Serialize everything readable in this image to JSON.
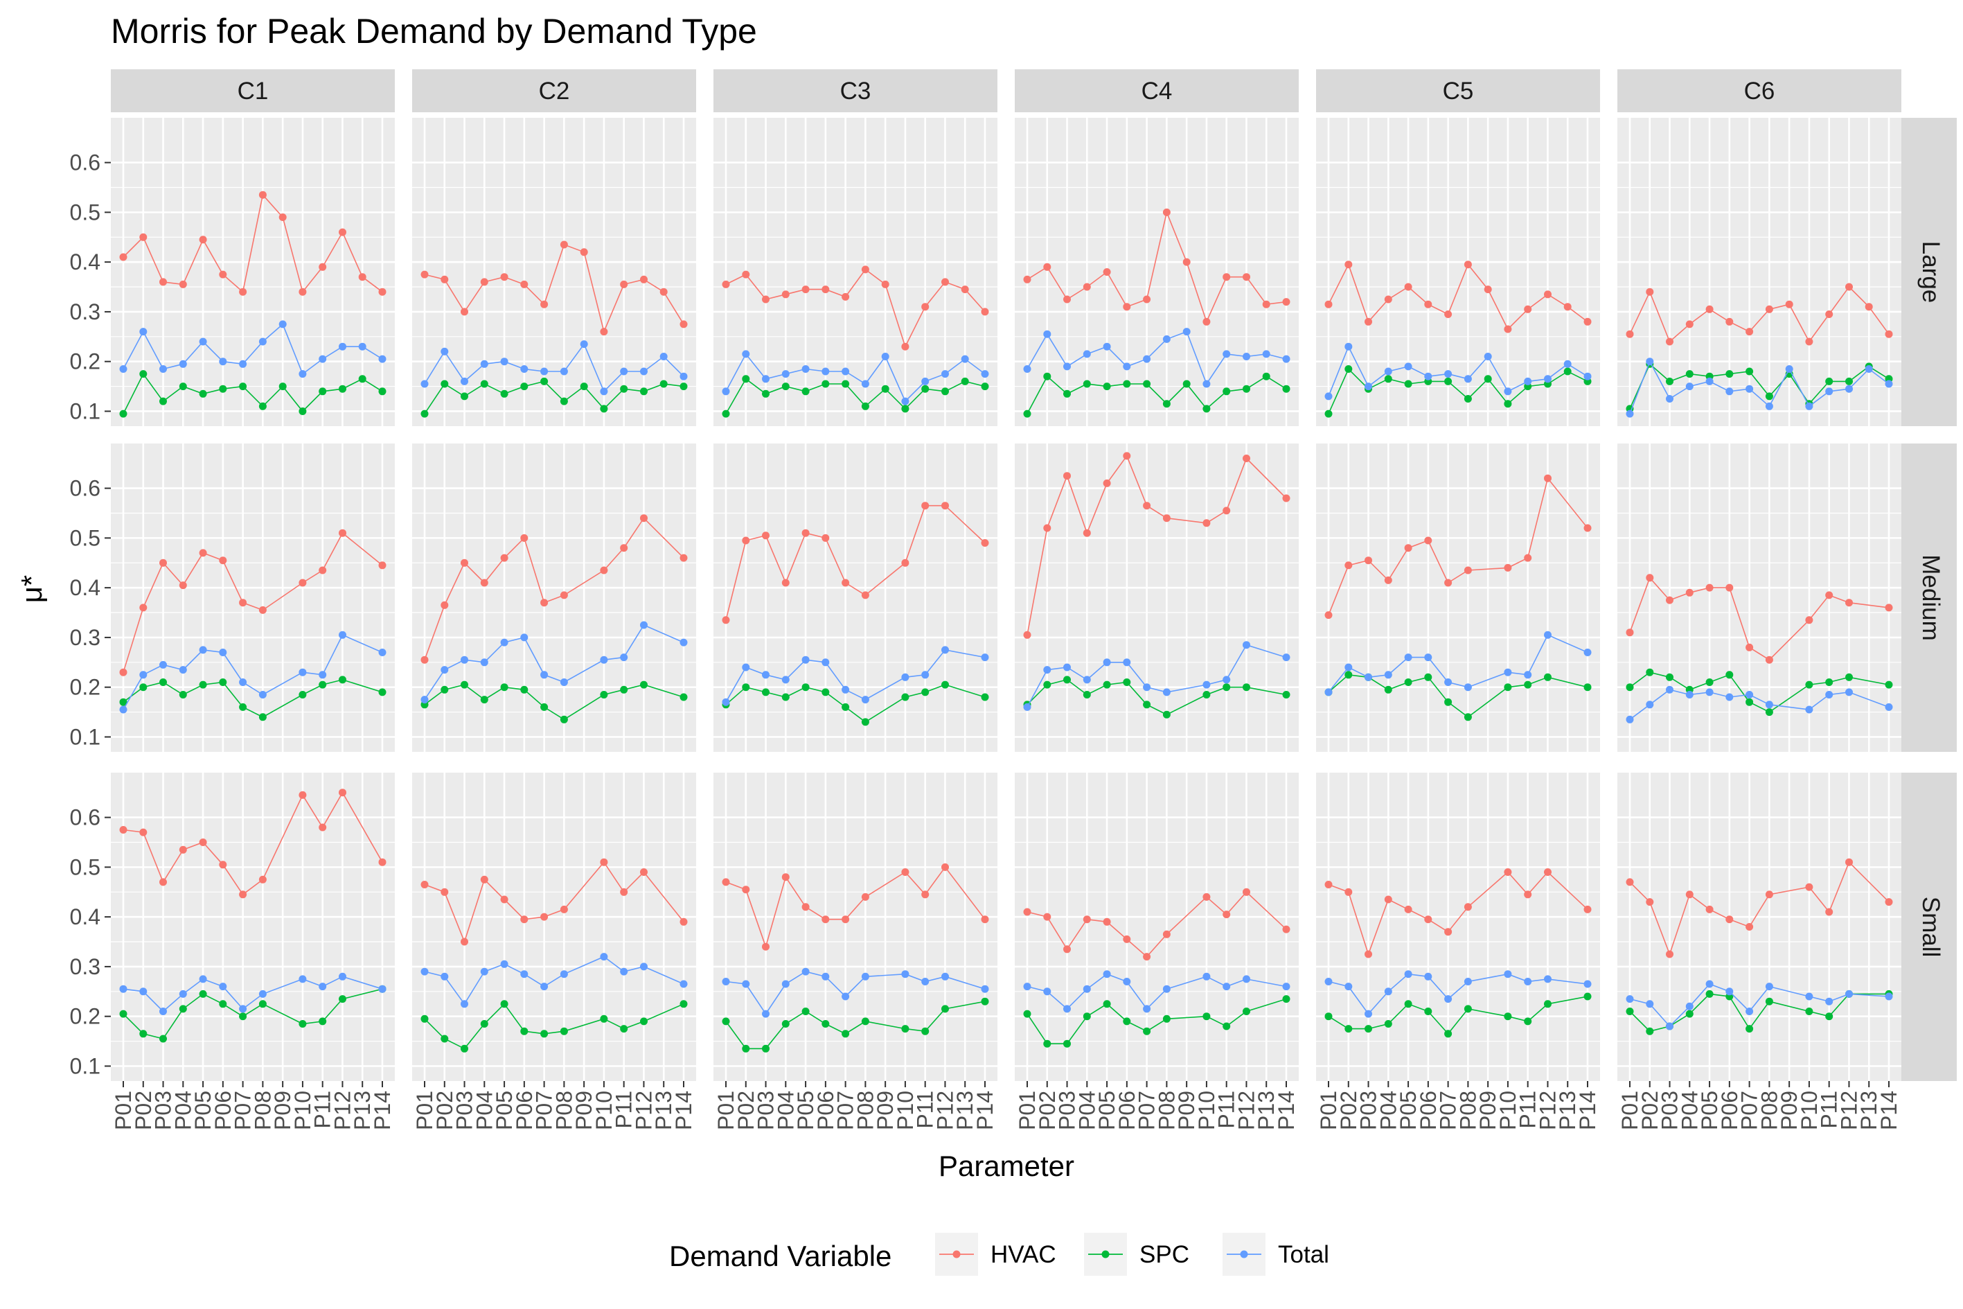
{
  "chart_data": {
    "type": "line",
    "title": "Morris for Peak Demand by Demand Type",
    "xlabel": "Parameter",
    "ylabel": "μ*",
    "ylim": [
      0.07,
      0.69
    ],
    "yticks": [
      0.1,
      0.2,
      0.3,
      0.4,
      0.5,
      0.6
    ],
    "ytick_labels": [
      "0.1",
      "0.2",
      "0.3",
      "0.4",
      "0.5",
      "0.6"
    ],
    "columns": [
      "C1",
      "C2",
      "C3",
      "C4",
      "C5",
      "C6"
    ],
    "rows": [
      "Large",
      "Medium",
      "Small"
    ],
    "x": [
      "P01",
      "P02",
      "P03",
      "P04",
      "P05",
      "P06",
      "P07",
      "P08",
      "P09",
      "P10",
      "P11",
      "P12",
      "P13",
      "P14"
    ],
    "grid": true,
    "legend": {
      "title": "Demand Variable",
      "position": "bottom",
      "entries": [
        "HVAC",
        "SPC",
        "Total"
      ]
    },
    "series_colors": {
      "HVAC": "#F8766D",
      "SPC": "#00BA38",
      "Total": "#619CFF"
    },
    "panels": {
      "Large": {
        "C1": {
          "HVAC": [
            0.41,
            0.45,
            0.36,
            0.355,
            0.445,
            0.375,
            0.34,
            0.535,
            0.49,
            0.34,
            0.39,
            0.46,
            0.37,
            0.34
          ],
          "SPC": [
            0.095,
            0.175,
            0.12,
            0.15,
            0.135,
            0.145,
            0.15,
            0.11,
            0.15,
            0.1,
            0.14,
            0.145,
            0.165,
            0.14
          ],
          "Total": [
            0.185,
            0.26,
            0.185,
            0.195,
            0.24,
            0.2,
            0.195,
            0.24,
            0.275,
            0.175,
            0.205,
            0.23,
            0.23,
            0.205
          ]
        },
        "C2": {
          "HVAC": [
            0.375,
            0.365,
            0.3,
            0.36,
            0.37,
            0.355,
            0.315,
            0.435,
            0.42,
            0.26,
            0.355,
            0.365,
            0.34,
            0.275
          ],
          "SPC": [
            0.095,
            0.155,
            0.13,
            0.155,
            0.135,
            0.15,
            0.16,
            0.12,
            0.15,
            0.105,
            0.145,
            0.14,
            0.155,
            0.15
          ],
          "Total": [
            0.155,
            0.22,
            0.16,
            0.195,
            0.2,
            0.185,
            0.18,
            0.18,
            0.235,
            0.14,
            0.18,
            0.18,
            0.21,
            0.17
          ]
        },
        "C3": {
          "HVAC": [
            0.355,
            0.375,
            0.325,
            0.335,
            0.345,
            0.345,
            0.33,
            0.385,
            0.355,
            0.23,
            0.31,
            0.36,
            0.345,
            0.3
          ],
          "SPC": [
            0.095,
            0.165,
            0.135,
            0.15,
            0.14,
            0.155,
            0.155,
            0.11,
            0.145,
            0.105,
            0.145,
            0.14,
            0.16,
            0.15
          ],
          "Total": [
            0.14,
            0.215,
            0.165,
            0.175,
            0.185,
            0.18,
            0.18,
            0.155,
            0.21,
            0.12,
            0.16,
            0.175,
            0.205,
            0.175
          ]
        },
        "C4": {
          "HVAC": [
            0.365,
            0.39,
            0.325,
            0.35,
            0.38,
            0.31,
            0.325,
            0.5,
            0.4,
            0.28,
            0.37,
            0.37,
            0.315,
            0.32
          ],
          "SPC": [
            0.095,
            0.17,
            0.135,
            0.155,
            0.15,
            0.155,
            0.155,
            0.115,
            0.155,
            0.105,
            0.14,
            0.145,
            0.17,
            0.145
          ],
          "Total": [
            0.185,
            0.255,
            0.19,
            0.215,
            0.23,
            0.19,
            0.205,
            0.245,
            0.26,
            0.155,
            0.215,
            0.21,
            0.215,
            0.205
          ]
        },
        "C5": {
          "HVAC": [
            0.315,
            0.395,
            0.28,
            0.325,
            0.35,
            0.315,
            0.295,
            0.395,
            0.345,
            0.265,
            0.305,
            0.335,
            0.31,
            0.28
          ],
          "SPC": [
            0.095,
            0.185,
            0.145,
            0.165,
            0.155,
            0.16,
            0.16,
            0.125,
            0.165,
            0.115,
            0.15,
            0.155,
            0.18,
            0.16
          ],
          "Total": [
            0.13,
            0.23,
            0.15,
            0.18,
            0.19,
            0.17,
            0.175,
            0.165,
            0.21,
            0.14,
            0.16,
            0.165,
            0.195,
            0.17
          ]
        },
        "C6": {
          "HVAC": [
            0.255,
            0.34,
            0.24,
            0.275,
            0.305,
            0.28,
            0.26,
            0.305,
            0.315,
            0.24,
            0.295,
            0.35,
            0.31,
            0.255
          ],
          "SPC": [
            0.105,
            0.195,
            0.16,
            0.175,
            0.17,
            0.175,
            0.18,
            0.13,
            0.175,
            0.115,
            0.16,
            0.16,
            0.19,
            0.165
          ],
          "Total": [
            0.095,
            0.2,
            0.125,
            0.15,
            0.16,
            0.14,
            0.145,
            0.11,
            0.185,
            0.11,
            0.14,
            0.145,
            0.185,
            0.155
          ]
        }
      },
      "Medium": {
        "C1": {
          "HVAC": [
            0.23,
            0.36,
            0.45,
            0.405,
            0.47,
            0.455,
            0.37,
            0.355,
            null,
            0.41,
            0.435,
            0.51,
            null,
            0.445
          ],
          "SPC": [
            0.17,
            0.2,
            0.21,
            0.185,
            0.205,
            0.21,
            0.16,
            0.14,
            null,
            0.185,
            0.205,
            0.215,
            null,
            0.19
          ],
          "Total": [
            0.155,
            0.225,
            0.245,
            0.235,
            0.275,
            0.27,
            0.21,
            0.185,
            null,
            0.23,
            0.225,
            0.305,
            null,
            0.27
          ]
        },
        "C2": {
          "HVAC": [
            0.255,
            0.365,
            0.45,
            0.41,
            0.46,
            0.5,
            0.37,
            0.385,
            null,
            0.435,
            0.48,
            0.54,
            null,
            0.46
          ],
          "SPC": [
            0.165,
            0.195,
            0.205,
            0.175,
            0.2,
            0.195,
            0.16,
            0.135,
            null,
            0.185,
            0.195,
            0.205,
            null,
            0.18
          ],
          "Total": [
            0.175,
            0.235,
            0.255,
            0.25,
            0.29,
            0.3,
            0.225,
            0.21,
            null,
            0.255,
            0.26,
            0.325,
            null,
            0.29
          ]
        },
        "C3": {
          "HVAC": [
            0.335,
            0.495,
            0.505,
            0.41,
            0.51,
            0.5,
            0.41,
            0.385,
            null,
            0.45,
            0.565,
            0.565,
            null,
            0.49
          ],
          "SPC": [
            0.165,
            0.2,
            0.19,
            0.18,
            0.2,
            0.19,
            0.16,
            0.13,
            null,
            0.18,
            0.19,
            0.205,
            null,
            0.18
          ],
          "Total": [
            0.17,
            0.24,
            0.225,
            0.215,
            0.255,
            0.25,
            0.195,
            0.175,
            null,
            0.22,
            0.225,
            0.275,
            null,
            0.26
          ]
        },
        "C4": {
          "HVAC": [
            0.305,
            0.52,
            0.625,
            0.51,
            0.61,
            0.665,
            0.565,
            0.54,
            null,
            0.53,
            0.555,
            0.66,
            null,
            0.58
          ],
          "SPC": [
            0.165,
            0.205,
            0.215,
            0.185,
            0.205,
            0.21,
            0.165,
            0.145,
            null,
            0.185,
            0.2,
            0.2,
            null,
            0.185
          ],
          "Total": [
            0.16,
            0.235,
            0.24,
            0.215,
            0.25,
            0.25,
            0.2,
            0.19,
            null,
            0.205,
            0.215,
            0.285,
            null,
            0.26
          ]
        },
        "C5": {
          "HVAC": [
            0.345,
            0.445,
            0.455,
            0.415,
            0.48,
            0.495,
            0.41,
            0.435,
            null,
            0.44,
            0.46,
            0.62,
            null,
            0.52
          ],
          "SPC": [
            0.19,
            0.225,
            0.22,
            0.195,
            0.21,
            0.22,
            0.17,
            0.14,
            null,
            0.2,
            0.205,
            0.22,
            null,
            0.2
          ],
          "Total": [
            0.19,
            0.24,
            0.22,
            0.225,
            0.26,
            0.26,
            0.21,
            0.2,
            null,
            0.23,
            0.225,
            0.305,
            null,
            0.27
          ]
        },
        "C6": {
          "HVAC": [
            0.31,
            0.42,
            0.375,
            0.39,
            0.4,
            0.4,
            0.28,
            0.255,
            null,
            0.335,
            0.385,
            0.37,
            null,
            0.36
          ],
          "SPC": [
            0.2,
            0.23,
            0.22,
            0.195,
            0.21,
            0.225,
            0.17,
            0.15,
            null,
            0.205,
            0.21,
            0.22,
            null,
            0.205
          ],
          "Total": [
            0.135,
            0.165,
            0.195,
            0.185,
            0.19,
            0.18,
            0.185,
            0.165,
            null,
            0.155,
            0.185,
            0.19,
            null,
            0.16
          ]
        }
      },
      "Small": {
        "C1": {
          "HVAC": [
            0.575,
            0.57,
            0.47,
            0.535,
            0.55,
            0.505,
            0.445,
            0.475,
            null,
            0.645,
            0.58,
            0.65,
            null,
            0.51
          ],
          "SPC": [
            0.205,
            0.165,
            0.155,
            0.215,
            0.245,
            0.225,
            0.2,
            0.225,
            null,
            0.185,
            0.19,
            0.235,
            null,
            0.255
          ],
          "Total": [
            0.255,
            0.25,
            0.21,
            0.245,
            0.275,
            0.26,
            0.215,
            0.245,
            null,
            0.275,
            0.26,
            0.28,
            null,
            0.255
          ]
        },
        "C2": {
          "HVAC": [
            0.465,
            0.45,
            0.35,
            0.475,
            0.435,
            0.395,
            0.4,
            0.415,
            null,
            0.51,
            0.45,
            0.49,
            null,
            0.39
          ],
          "SPC": [
            0.195,
            0.155,
            0.135,
            0.185,
            0.225,
            0.17,
            0.165,
            0.17,
            null,
            0.195,
            0.175,
            0.19,
            null,
            0.225
          ],
          "Total": [
            0.29,
            0.28,
            0.225,
            0.29,
            0.305,
            0.285,
            0.26,
            0.285,
            null,
            0.32,
            0.29,
            0.3,
            null,
            0.265
          ]
        },
        "C3": {
          "HVAC": [
            0.47,
            0.455,
            0.34,
            0.48,
            0.42,
            0.395,
            0.395,
            0.44,
            null,
            0.49,
            0.445,
            0.5,
            null,
            0.395
          ],
          "SPC": [
            0.19,
            0.135,
            0.135,
            0.185,
            0.21,
            0.185,
            0.165,
            0.19,
            null,
            0.175,
            0.17,
            0.215,
            null,
            0.23
          ],
          "Total": [
            0.27,
            0.265,
            0.205,
            0.265,
            0.29,
            0.28,
            0.24,
            0.28,
            null,
            0.285,
            0.27,
            0.28,
            null,
            0.255
          ]
        },
        "C4": {
          "HVAC": [
            0.41,
            0.4,
            0.335,
            0.395,
            0.39,
            0.355,
            0.32,
            0.365,
            null,
            0.44,
            0.405,
            0.45,
            null,
            0.375
          ],
          "SPC": [
            0.205,
            0.145,
            0.145,
            0.2,
            0.225,
            0.19,
            0.17,
            0.195,
            null,
            0.2,
            0.18,
            0.21,
            null,
            0.235
          ],
          "Total": [
            0.26,
            0.25,
            0.215,
            0.255,
            0.285,
            0.27,
            0.215,
            0.255,
            null,
            0.28,
            0.26,
            0.275,
            null,
            0.26
          ]
        },
        "C5": {
          "HVAC": [
            0.465,
            0.45,
            0.325,
            0.435,
            0.415,
            0.395,
            0.37,
            0.42,
            null,
            0.49,
            0.445,
            0.49,
            null,
            0.415
          ],
          "SPC": [
            0.2,
            0.175,
            0.175,
            0.185,
            0.225,
            0.21,
            0.165,
            0.215,
            null,
            0.2,
            0.19,
            0.225,
            null,
            0.24
          ],
          "Total": [
            0.27,
            0.26,
            0.205,
            0.25,
            0.285,
            0.28,
            0.235,
            0.27,
            null,
            0.285,
            0.27,
            0.275,
            null,
            0.265
          ]
        },
        "C6": {
          "HVAC": [
            0.47,
            0.43,
            0.325,
            0.445,
            0.415,
            0.395,
            0.38,
            0.445,
            null,
            0.46,
            0.41,
            0.51,
            null,
            0.43
          ],
          "SPC": [
            0.21,
            0.17,
            0.18,
            0.205,
            0.245,
            0.24,
            0.175,
            0.23,
            null,
            0.21,
            0.2,
            0.245,
            null,
            0.245
          ],
          "Total": [
            0.235,
            0.225,
            0.18,
            0.22,
            0.265,
            0.25,
            0.21,
            0.26,
            null,
            0.24,
            0.23,
            0.245,
            null,
            0.24
          ]
        }
      }
    }
  }
}
